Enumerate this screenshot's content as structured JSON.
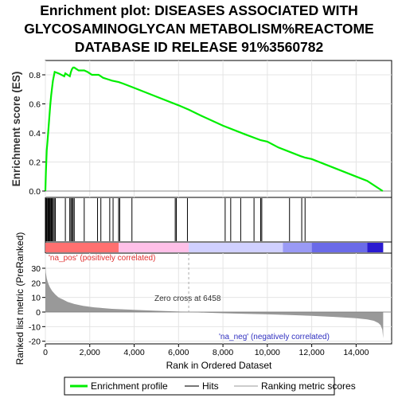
{
  "chart_data": {
    "type": "line",
    "title_lines": [
      "Enrichment plot: DISEASES ASSOCIATED WITH",
      "GLYCOSAMINOGLYCAN METABOLISM%REACTOME",
      "DATABASE ID RELEASE 91%3560782"
    ],
    "xlabel": "Rank in Ordered Dataset",
    "ylabel_es": "Enrichment score (ES)",
    "ylabel_metric": "Ranked list metric (PreRanked)",
    "xlim": [
      0,
      15600
    ],
    "es_ylim": [
      0,
      0.88
    ],
    "metric_ylim": [
      -20,
      35
    ],
    "x_ticks": [
      0,
      2000,
      4000,
      6000,
      8000,
      10000,
      12000,
      14000
    ],
    "x_tick_labels": [
      "0",
      "2,000",
      "4,000",
      "6,000",
      "8,000",
      "10,000",
      "12,000",
      "14,000"
    ],
    "es_ticks": [
      0.0,
      0.2,
      0.4,
      0.6,
      0.8
    ],
    "es_tick_labels": [
      "0.0",
      "0.2",
      "0.4",
      "0.6",
      "0.8"
    ],
    "metric_ticks": [
      -20,
      -10,
      0,
      10,
      20,
      30
    ],
    "metric_tick_labels": [
      "-20",
      "-10",
      "0",
      "10",
      "20",
      "30"
    ],
    "series": [
      {
        "name": "Enrichment profile",
        "color": "#00ee00",
        "x": [
          0,
          20,
          60,
          100,
          140,
          180,
          220,
          260,
          300,
          340,
          380,
          420,
          600,
          850,
          900,
          1000,
          1100,
          1150,
          1200,
          1250,
          1300,
          1500,
          1750,
          1900,
          2100,
          2400,
          2600,
          2800,
          3000,
          3300,
          3500,
          4000,
          5000,
          6000,
          6458,
          7000,
          8000,
          9000,
          9700,
          10000,
          10500,
          11000,
          11500,
          11700,
          12000,
          13000,
          14000,
          14500,
          15200
        ],
        "y": [
          0.0,
          0.12,
          0.28,
          0.35,
          0.43,
          0.51,
          0.59,
          0.66,
          0.71,
          0.76,
          0.79,
          0.82,
          0.81,
          0.79,
          0.81,
          0.8,
          0.79,
          0.82,
          0.84,
          0.85,
          0.85,
          0.83,
          0.83,
          0.82,
          0.8,
          0.8,
          0.78,
          0.77,
          0.76,
          0.75,
          0.74,
          0.71,
          0.65,
          0.59,
          0.56,
          0.52,
          0.45,
          0.39,
          0.35,
          0.34,
          0.3,
          0.27,
          0.24,
          0.23,
          0.22,
          0.16,
          0.1,
          0.07,
          0.0
        ]
      }
    ],
    "hits": [
      30,
      60,
      100,
      130,
      160,
      200,
      240,
      270,
      310,
      350,
      400,
      450,
      900,
      1100,
      1150,
      1200,
      1250,
      1300,
      1750,
      2350,
      2500,
      2900,
      3050,
      3300,
      3350,
      3900,
      5850,
      5900,
      6400,
      8100,
      8350,
      8800,
      9400,
      9700,
      9750,
      11000,
      11550,
      11700
    ],
    "metric_curve": {
      "color": "#999999",
      "x": [
        0,
        20,
        60,
        120,
        200,
        300,
        450,
        600,
        800,
        1000,
        1300,
        1700,
        2200,
        3000,
        4000,
        5000,
        6000,
        6458,
        7000,
        8000,
        9000,
        10000,
        11000,
        12000,
        13000,
        14000,
        14500,
        14800,
        15000,
        15100,
        15180,
        15220
      ],
      "y": [
        32,
        27,
        23,
        20,
        17,
        14.5,
        12,
        10,
        8.5,
        7,
        5.5,
        4.2,
        3.2,
        2.2,
        1.5,
        0.9,
        0.3,
        0.0,
        -0.3,
        -0.8,
        -1.2,
        -1.6,
        -2.0,
        -2.6,
        -3.3,
        -4.2,
        -5.0,
        -6.0,
        -7.5,
        -9,
        -12,
        -18
      ]
    },
    "zero_cross_label": "Zero cross at 6458",
    "zero_cross_x": 6458,
    "pos_label": "'na_pos' (positively correlated)",
    "neg_label": "'na_neg' (negatively correlated)",
    "color_bar": [
      {
        "from": 0,
        "to": 3300,
        "color": "#ff7070"
      },
      {
        "from": 3300,
        "to": 6458,
        "color": "#ffc0e8"
      },
      {
        "from": 6458,
        "to": 10700,
        "color": "#d0d0ff"
      },
      {
        "from": 10700,
        "to": 12000,
        "color": "#9a9af5"
      },
      {
        "from": 12000,
        "to": 14500,
        "color": "#6a6ae8"
      },
      {
        "from": 14500,
        "to": 15220,
        "color": "#2a1ad0"
      }
    ],
    "legend": [
      {
        "label": "Enrichment profile",
        "color": "#00ee00",
        "kind": "line"
      },
      {
        "label": "Hits",
        "color": "#777777",
        "kind": "line"
      },
      {
        "label": "Ranking metric scores",
        "color": "#cccccc",
        "kind": "line"
      }
    ],
    "grid": true,
    "legend_placement": "bottom"
  }
}
